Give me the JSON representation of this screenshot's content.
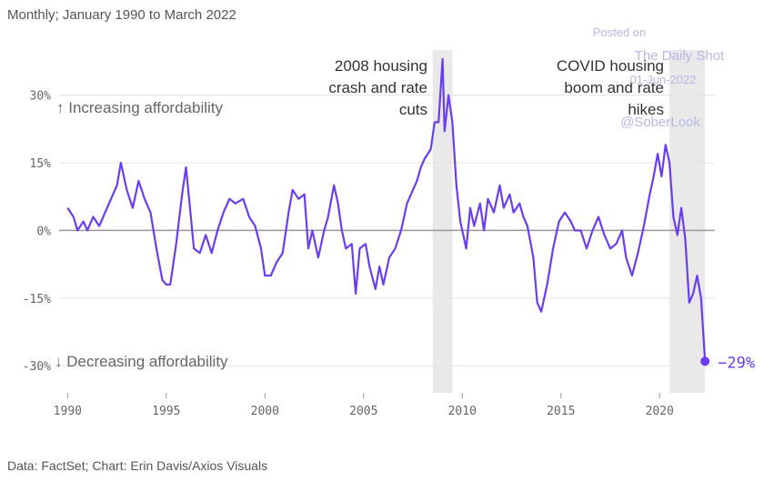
{
  "subtitle": "Monthly; January 1990 to March 2022",
  "source": "Data: FactSet; Chart: Erin Davis/Axios Visuals",
  "watermark": {
    "line1": "Posted on",
    "line2": "The Daily Shot",
    "line3": "01-Jun-2022",
    "line4": "@SoberLook"
  },
  "colors": {
    "line": "#6b3df0",
    "band": "#e9e9e9",
    "grid": "#e3e3e3",
    "zero": "#999999"
  },
  "chart_data": {
    "type": "line",
    "title": "",
    "xlabel": "",
    "ylabel": "",
    "xlim": [
      1989.8,
      2022.8
    ],
    "ylim": [
      -36,
      40
    ],
    "y_ticks": [
      30,
      15,
      0,
      -15,
      -30
    ],
    "y_tick_labels": [
      "30%",
      "15%",
      "0%",
      "-15%",
      "-30%"
    ],
    "x_ticks": [
      1990,
      1995,
      2000,
      2005,
      2010,
      2015,
      2020
    ],
    "x_tick_labels": [
      "1990",
      "1995",
      "2000",
      "2005",
      "2010",
      "2015",
      "2020"
    ],
    "grid": true,
    "shaded_periods": [
      {
        "start": 2008.5,
        "end": 2009.5,
        "label_lines": [
          "2008 housing",
          "crash and rate",
          "cuts"
        ]
      },
      {
        "start": 2020.5,
        "end": 2022.3,
        "label_lines": [
          "COVID housing",
          "boom and rate",
          "hikes"
        ]
      }
    ],
    "side_labels": {
      "up": "↑ Increasing affordability",
      "down": "↓ Decreasing affordability"
    },
    "end_label": "−29%",
    "series": [
      {
        "values": [
          [
            1990.0,
            5
          ],
          [
            1990.3,
            3
          ],
          [
            1990.5,
            0
          ],
          [
            1990.8,
            2
          ],
          [
            1991.0,
            0
          ],
          [
            1991.3,
            3
          ],
          [
            1991.6,
            1
          ],
          [
            1991.9,
            4
          ],
          [
            1992.2,
            7
          ],
          [
            1992.5,
            10
          ],
          [
            1992.7,
            15
          ],
          [
            1993.0,
            9
          ],
          [
            1993.3,
            5
          ],
          [
            1993.6,
            11
          ],
          [
            1993.9,
            7
          ],
          [
            1994.2,
            4
          ],
          [
            1994.5,
            -4
          ],
          [
            1994.8,
            -11
          ],
          [
            1995.0,
            -12
          ],
          [
            1995.2,
            -12
          ],
          [
            1995.5,
            -3
          ],
          [
            1995.8,
            8
          ],
          [
            1996.0,
            14
          ],
          [
            1996.2,
            5
          ],
          [
            1996.4,
            -4
          ],
          [
            1996.7,
            -5
          ],
          [
            1997.0,
            -1
          ],
          [
            1997.3,
            -5
          ],
          [
            1997.6,
            0
          ],
          [
            1997.9,
            4
          ],
          [
            1998.2,
            7
          ],
          [
            1998.5,
            6
          ],
          [
            1998.9,
            7
          ],
          [
            1999.2,
            3
          ],
          [
            1999.5,
            1
          ],
          [
            1999.8,
            -4
          ],
          [
            2000.0,
            -10
          ],
          [
            2000.3,
            -10
          ],
          [
            2000.6,
            -7
          ],
          [
            2000.9,
            -5
          ],
          [
            2001.2,
            4
          ],
          [
            2001.4,
            9
          ],
          [
            2001.7,
            7
          ],
          [
            2002.0,
            8
          ],
          [
            2002.2,
            -4
          ],
          [
            2002.4,
            0
          ],
          [
            2002.7,
            -6
          ],
          [
            2003.0,
            0
          ],
          [
            2003.2,
            3
          ],
          [
            2003.5,
            10
          ],
          [
            2003.7,
            6
          ],
          [
            2003.9,
            0
          ],
          [
            2004.1,
            -4
          ],
          [
            2004.4,
            -3
          ],
          [
            2004.6,
            -14
          ],
          [
            2004.8,
            -4
          ],
          [
            2005.1,
            -3
          ],
          [
            2005.3,
            -8
          ],
          [
            2005.6,
            -13
          ],
          [
            2005.8,
            -8
          ],
          [
            2006.0,
            -12
          ],
          [
            2006.3,
            -6
          ],
          [
            2006.6,
            -4
          ],
          [
            2006.9,
            0
          ],
          [
            2007.2,
            6
          ],
          [
            2007.5,
            9
          ],
          [
            2007.7,
            11
          ],
          [
            2007.9,
            14
          ],
          [
            2008.1,
            16
          ],
          [
            2008.4,
            18
          ],
          [
            2008.6,
            24
          ],
          [
            2008.8,
            24
          ],
          [
            2009.0,
            38
          ],
          [
            2009.1,
            22
          ],
          [
            2009.3,
            30
          ],
          [
            2009.5,
            24
          ],
          [
            2009.7,
            10
          ],
          [
            2009.9,
            2
          ],
          [
            2010.2,
            -4
          ],
          [
            2010.4,
            5
          ],
          [
            2010.6,
            1
          ],
          [
            2010.9,
            6
          ],
          [
            2011.1,
            0
          ],
          [
            2011.3,
            7
          ],
          [
            2011.6,
            4
          ],
          [
            2011.9,
            10
          ],
          [
            2012.1,
            5
          ],
          [
            2012.4,
            8
          ],
          [
            2012.6,
            4
          ],
          [
            2012.9,
            6
          ],
          [
            2013.1,
            3
          ],
          [
            2013.3,
            1
          ],
          [
            2013.6,
            -6
          ],
          [
            2013.8,
            -16
          ],
          [
            2014.0,
            -18
          ],
          [
            2014.3,
            -12
          ],
          [
            2014.6,
            -4
          ],
          [
            2014.9,
            2
          ],
          [
            2015.2,
            4
          ],
          [
            2015.5,
            2
          ],
          [
            2015.7,
            0
          ],
          [
            2016.0,
            0
          ],
          [
            2016.3,
            -4
          ],
          [
            2016.6,
            0
          ],
          [
            2016.9,
            3
          ],
          [
            2017.2,
            -1
          ],
          [
            2017.5,
            -4
          ],
          [
            2017.8,
            -3
          ],
          [
            2018.1,
            0
          ],
          [
            2018.3,
            -6
          ],
          [
            2018.6,
            -10
          ],
          [
            2018.9,
            -5
          ],
          [
            2019.2,
            1
          ],
          [
            2019.5,
            8
          ],
          [
            2019.7,
            12
          ],
          [
            2019.9,
            17
          ],
          [
            2020.1,
            12
          ],
          [
            2020.3,
            19
          ],
          [
            2020.5,
            15
          ],
          [
            2020.7,
            3
          ],
          [
            2020.9,
            -1
          ],
          [
            2021.1,
            5
          ],
          [
            2021.3,
            -2
          ],
          [
            2021.5,
            -16
          ],
          [
            2021.7,
            -14
          ],
          [
            2021.9,
            -10
          ],
          [
            2022.1,
            -15
          ],
          [
            2022.3,
            -29
          ]
        ]
      }
    ]
  }
}
